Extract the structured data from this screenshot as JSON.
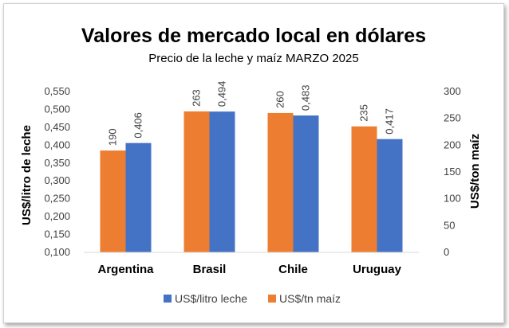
{
  "chart_data": {
    "type": "bar",
    "title": "Valores de mercado local en dólares",
    "subtitle": "Precio de la leche y maíz MARZO 2025",
    "categories": [
      "Argentina",
      "Brasil",
      "Chile",
      "Uruguay"
    ],
    "series": [
      {
        "name": "US$/tn maíz",
        "axis": "right",
        "color": "#ED7D31",
        "values": [
          190,
          263,
          260,
          235
        ],
        "labels": [
          "190",
          "263",
          "260",
          "235"
        ]
      },
      {
        "name": "US$/litro leche",
        "axis": "left",
        "color": "#4472C4",
        "values": [
          0.406,
          0.494,
          0.483,
          0.417
        ],
        "labels": [
          "0,406",
          "0,494",
          "0,483",
          "0,417"
        ]
      }
    ],
    "ylabel": "US$/litro de leche",
    "ylim": [
      0.1,
      0.55
    ],
    "yticks": [
      "0,100",
      "0,150",
      "0,200",
      "0,250",
      "0,300",
      "0,350",
      "0,400",
      "0,450",
      "0,500",
      "0,550"
    ],
    "y2label": "US$/ton maíz",
    "y2lim": [
      0,
      300
    ],
    "y2ticks": [
      "0",
      "50",
      "100",
      "150",
      "200",
      "250",
      "300"
    ],
    "legend_order": [
      "US$/litro leche",
      "US$/tn maíz"
    ],
    "legend_position": "bottom",
    "grid": false
  }
}
